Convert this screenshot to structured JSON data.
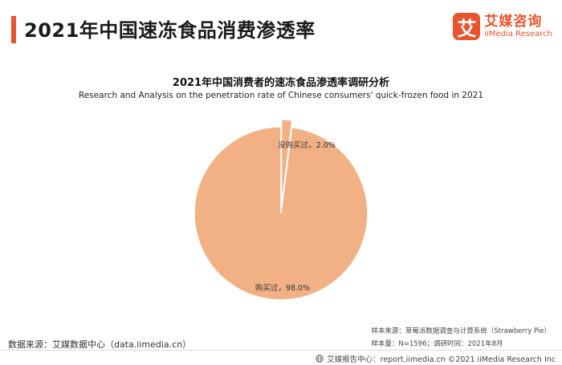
{
  "header": {
    "title": "2021年中国速冻食品消费渗透率",
    "logo_mark": "艾",
    "logo_cn": "艾媒咨询",
    "logo_en": "iiMedia Research"
  },
  "chart_data": {
    "type": "pie",
    "title": "2021年中国消费者的速冻食品渗透率调研分析",
    "subtitle": "Research and Analysis on the penetration rate of Chinese consumers' quick-frozen food in 2021",
    "slices": [
      {
        "label": "购买过，98.0%",
        "value": 98.0,
        "color": "#f2b185"
      },
      {
        "label": "没购买过，2.0%",
        "value": 2.0,
        "color": "#f2b185",
        "exploded": true
      }
    ]
  },
  "footer": {
    "source_left": "数据来源：艾媒数据中心（data.iimedia.cn）",
    "sample_source": "样本来源：草莓派数据调查与计算系统（Strawberry Pie）",
    "sample_size": "样本量：N=1596；调研时间：2021年8月",
    "report_center": "艾媒报告中心：report.iimedia.cn ©2021 iiMedia Research Inc",
    "globe_icon": "globe-icon"
  }
}
